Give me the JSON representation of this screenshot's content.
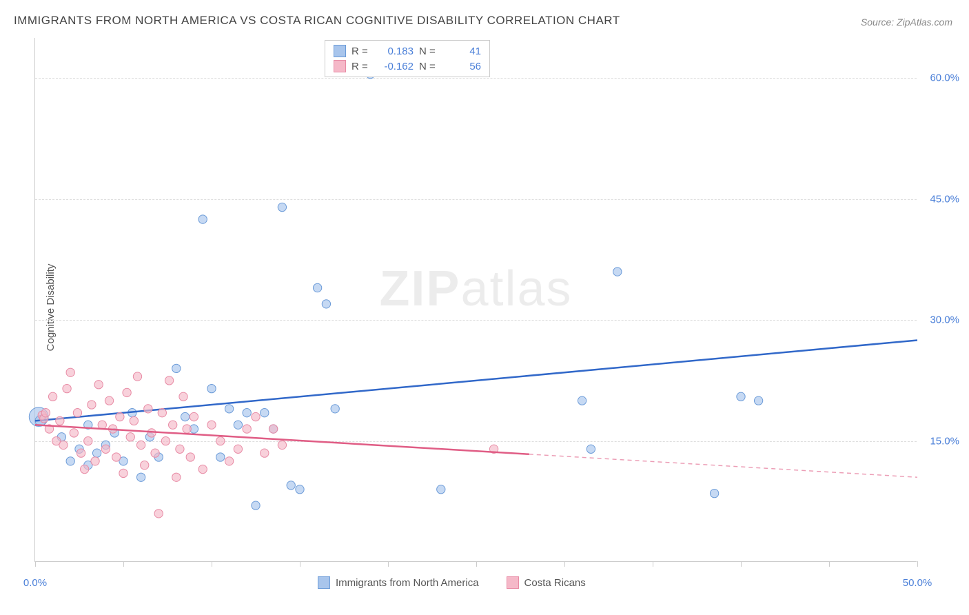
{
  "title": "IMMIGRANTS FROM NORTH AMERICA VS COSTA RICAN COGNITIVE DISABILITY CORRELATION CHART",
  "source_prefix": "Source: ",
  "source_name": "ZipAtlas.com",
  "ylabel": "Cognitive Disability",
  "watermark_a": "ZIP",
  "watermark_b": "atlas",
  "chart": {
    "type": "scatter",
    "xlim": [
      0,
      50
    ],
    "ylim": [
      0,
      65
    ],
    "xticks": [
      0,
      5,
      10,
      15,
      20,
      25,
      30,
      35,
      40,
      45,
      50
    ],
    "xlabel_ticks": [
      {
        "v": 0,
        "t": "0.0%"
      },
      {
        "v": 50,
        "t": "50.0%"
      }
    ],
    "ylabel_ticks": [
      {
        "v": 15,
        "t": "15.0%"
      },
      {
        "v": 30,
        "t": "30.0%"
      },
      {
        "v": 45,
        "t": "45.0%"
      },
      {
        "v": 60,
        "t": "60.0%"
      }
    ],
    "background_color": "#ffffff",
    "grid_color": "#dddddd",
    "series": [
      {
        "name": "Immigrants from North America",
        "color_fill": "#a8c5ec",
        "color_stroke": "#6b9bd8",
        "line_color": "#3168c9",
        "r_label": "R =",
        "r_value": "0.183",
        "n_label": "N =",
        "n_value": "41",
        "trend": {
          "x1": 0,
          "y1": 17.5,
          "x2": 50,
          "y2": 27.5,
          "dash_from_x": 50
        },
        "points": [
          [
            0.2,
            18.0,
            18
          ],
          [
            0.3,
            17.5,
            10
          ],
          [
            1.5,
            15.5,
            8
          ],
          [
            2.0,
            12.5,
            8
          ],
          [
            2.5,
            14.0,
            8
          ],
          [
            3.0,
            17.0,
            8
          ],
          [
            3.0,
            12.0,
            8
          ],
          [
            3.5,
            13.5,
            8
          ],
          [
            4.0,
            14.5,
            8
          ],
          [
            4.5,
            16.0,
            8
          ],
          [
            5.0,
            12.5,
            8
          ],
          [
            5.5,
            18.5,
            8
          ],
          [
            6.0,
            10.5,
            8
          ],
          [
            6.5,
            15.5,
            8
          ],
          [
            7.0,
            13.0,
            8
          ],
          [
            8.0,
            24.0,
            8
          ],
          [
            8.5,
            18.0,
            8
          ],
          [
            9.0,
            16.5,
            8
          ],
          [
            9.5,
            42.5,
            8
          ],
          [
            10.0,
            21.5,
            8
          ],
          [
            10.5,
            13.0,
            8
          ],
          [
            11.0,
            19.0,
            8
          ],
          [
            11.5,
            17.0,
            8
          ],
          [
            12.0,
            18.5,
            8
          ],
          [
            12.5,
            7.0,
            8
          ],
          [
            13.0,
            18.5,
            8
          ],
          [
            13.5,
            16.5,
            8
          ],
          [
            14.0,
            44.0,
            8
          ],
          [
            14.5,
            9.5,
            8
          ],
          [
            15.0,
            9.0,
            8
          ],
          [
            16.0,
            34.0,
            8
          ],
          [
            16.5,
            32.0,
            8
          ],
          [
            17.0,
            19.0,
            8
          ],
          [
            19.0,
            60.5,
            8
          ],
          [
            23.0,
            9.0,
            8
          ],
          [
            31.0,
            20.0,
            8
          ],
          [
            31.5,
            14.0,
            8
          ],
          [
            33.0,
            36.0,
            8
          ],
          [
            38.5,
            8.5,
            8
          ],
          [
            40.0,
            20.5,
            8
          ],
          [
            41.0,
            20.0,
            8
          ]
        ]
      },
      {
        "name": "Costa Ricans",
        "color_fill": "#f5b8c8",
        "color_stroke": "#e88ba5",
        "line_color": "#e05d85",
        "r_label": "R =",
        "r_value": "-0.162",
        "n_label": "N =",
        "n_value": "56",
        "trend": {
          "x1": 0,
          "y1": 17.0,
          "x2": 50,
          "y2": 10.5,
          "dash_from_x": 28
        },
        "points": [
          [
            0.4,
            18.2,
            8
          ],
          [
            0.5,
            17.8,
            8
          ],
          [
            0.6,
            18.5,
            8
          ],
          [
            0.8,
            16.5,
            8
          ],
          [
            1.0,
            20.5,
            8
          ],
          [
            1.2,
            15.0,
            8
          ],
          [
            1.4,
            17.5,
            8
          ],
          [
            1.6,
            14.5,
            8
          ],
          [
            1.8,
            21.5,
            8
          ],
          [
            2.0,
            23.5,
            8
          ],
          [
            2.2,
            16.0,
            8
          ],
          [
            2.4,
            18.5,
            8
          ],
          [
            2.6,
            13.5,
            8
          ],
          [
            2.8,
            11.5,
            8
          ],
          [
            3.0,
            15.0,
            8
          ],
          [
            3.2,
            19.5,
            8
          ],
          [
            3.4,
            12.5,
            8
          ],
          [
            3.6,
            22.0,
            8
          ],
          [
            3.8,
            17.0,
            8
          ],
          [
            4.0,
            14.0,
            8
          ],
          [
            4.2,
            20.0,
            8
          ],
          [
            4.4,
            16.5,
            8
          ],
          [
            4.6,
            13.0,
            8
          ],
          [
            4.8,
            18.0,
            8
          ],
          [
            5.0,
            11.0,
            8
          ],
          [
            5.2,
            21.0,
            8
          ],
          [
            5.4,
            15.5,
            8
          ],
          [
            5.6,
            17.5,
            8
          ],
          [
            5.8,
            23.0,
            8
          ],
          [
            6.0,
            14.5,
            8
          ],
          [
            6.2,
            12.0,
            8
          ],
          [
            6.4,
            19.0,
            8
          ],
          [
            6.6,
            16.0,
            8
          ],
          [
            6.8,
            13.5,
            8
          ],
          [
            7.0,
            6.0,
            8
          ],
          [
            7.2,
            18.5,
            8
          ],
          [
            7.4,
            15.0,
            8
          ],
          [
            7.6,
            22.5,
            8
          ],
          [
            7.8,
            17.0,
            8
          ],
          [
            8.0,
            10.5,
            8
          ],
          [
            8.2,
            14.0,
            8
          ],
          [
            8.4,
            20.5,
            8
          ],
          [
            8.6,
            16.5,
            8
          ],
          [
            8.8,
            13.0,
            8
          ],
          [
            9.0,
            18.0,
            8
          ],
          [
            9.5,
            11.5,
            8
          ],
          [
            10.0,
            17.0,
            8
          ],
          [
            10.5,
            15.0,
            8
          ],
          [
            11.0,
            12.5,
            8
          ],
          [
            11.5,
            14.0,
            8
          ],
          [
            12.0,
            16.5,
            8
          ],
          [
            12.5,
            18.0,
            8
          ],
          [
            13.0,
            13.5,
            8
          ],
          [
            13.5,
            16.5,
            8
          ],
          [
            14.0,
            14.5,
            8
          ],
          [
            26.0,
            14.0,
            8
          ]
        ]
      }
    ]
  },
  "legend_bottom": [
    {
      "swatch_fill": "#a8c5ec",
      "swatch_stroke": "#6b9bd8",
      "label": "Immigrants from North America"
    },
    {
      "swatch_fill": "#f5b8c8",
      "swatch_stroke": "#e88ba5",
      "label": "Costa Ricans"
    }
  ]
}
